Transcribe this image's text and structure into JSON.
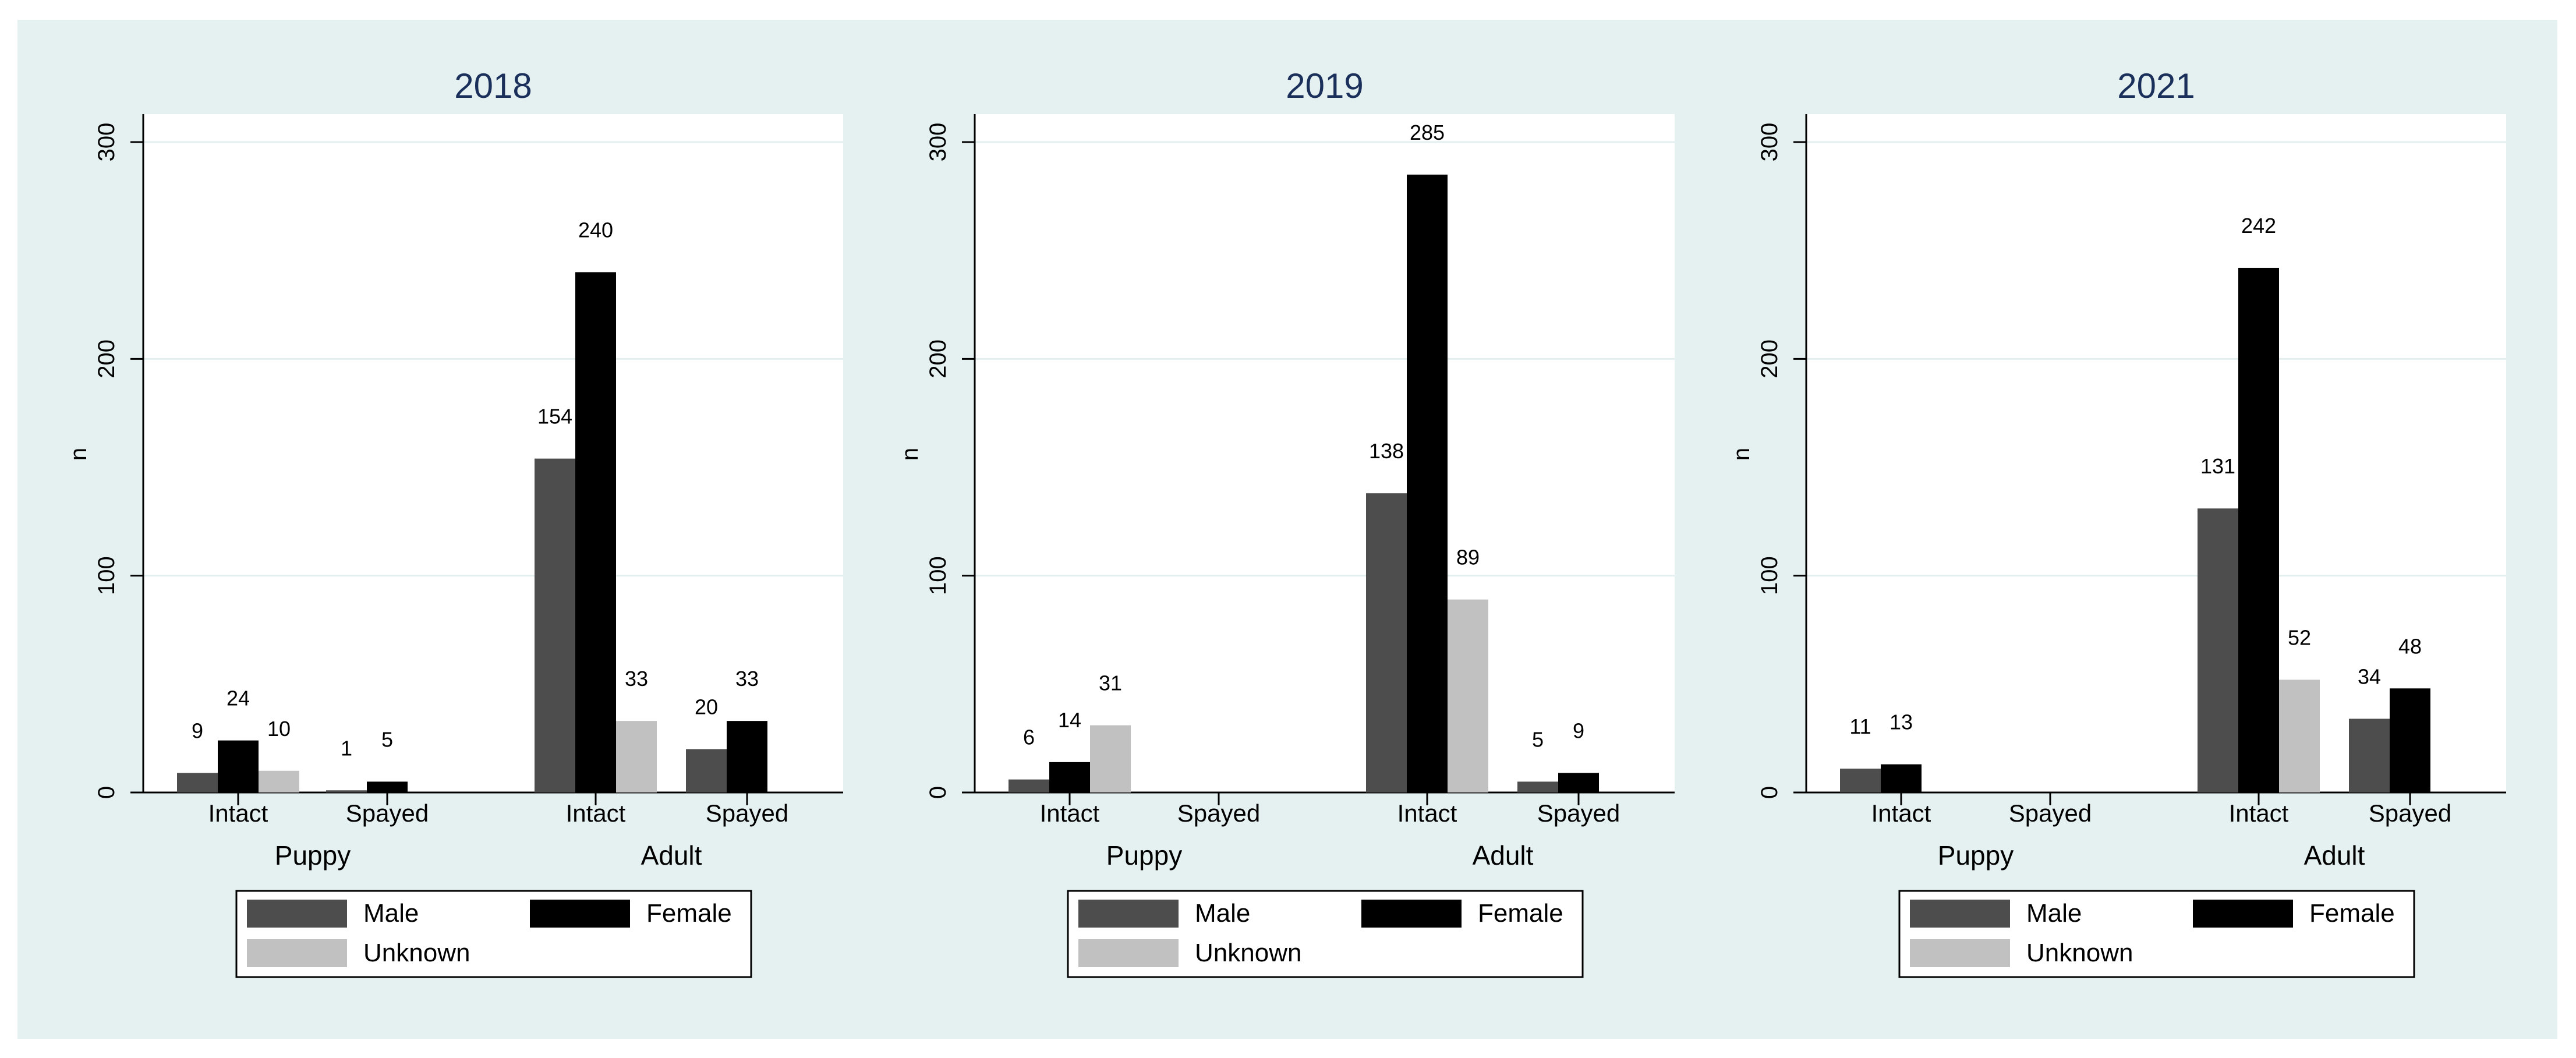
{
  "colors": {
    "background": "#e5f0f1",
    "plot_background": "#ffffff",
    "title": "#1a2f5a",
    "grid": "#e3eeee",
    "male": "#4d4d4d",
    "female": "#000000",
    "unknown": "#c1c1c1"
  },
  "chart_data": [
    {
      "type": "bar",
      "title": "2018",
      "xlabel": "",
      "ylabel": "n",
      "ylim": [
        0,
        300
      ],
      "yticks": [
        "0",
        "100",
        "200",
        "300"
      ],
      "groups": [
        {
          "label": "Puppy",
          "categories": [
            {
              "label": "Intact",
              "values": {
                "Male": 9,
                "Female": 24,
                "Unknown": 10
              }
            },
            {
              "label": "Spayed",
              "values": {
                "Male": 1,
                "Female": 5,
                "Unknown": null
              }
            }
          ]
        },
        {
          "label": "Adult",
          "categories": [
            {
              "label": "Intact",
              "values": {
                "Male": 154,
                "Female": 240,
                "Unknown": 33
              }
            },
            {
              "label": "Spayed",
              "values": {
                "Male": 20,
                "Female": 33,
                "Unknown": null
              }
            }
          ]
        }
      ],
      "legend": [
        "Male",
        "Female",
        "Unknown"
      ]
    },
    {
      "type": "bar",
      "title": "2019",
      "xlabel": "",
      "ylabel": "n",
      "ylim": [
        0,
        300
      ],
      "yticks": [
        "0",
        "100",
        "200",
        "300"
      ],
      "groups": [
        {
          "label": "Puppy",
          "categories": [
            {
              "label": "Intact",
              "values": {
                "Male": 6,
                "Female": 14,
                "Unknown": 31
              }
            },
            {
              "label": "Spayed",
              "values": {
                "Male": null,
                "Female": null,
                "Unknown": null
              }
            }
          ]
        },
        {
          "label": "Adult",
          "categories": [
            {
              "label": "Intact",
              "values": {
                "Male": 138,
                "Female": 285,
                "Unknown": 89
              }
            },
            {
              "label": "Spayed",
              "values": {
                "Male": 5,
                "Female": 9,
                "Unknown": null
              }
            }
          ]
        }
      ],
      "legend": [
        "Male",
        "Female",
        "Unknown"
      ]
    },
    {
      "type": "bar",
      "title": "2021",
      "xlabel": "",
      "ylabel": "n",
      "ylim": [
        0,
        300
      ],
      "yticks": [
        "0",
        "100",
        "200",
        "300"
      ],
      "groups": [
        {
          "label": "Puppy",
          "categories": [
            {
              "label": "Intact",
              "values": {
                "Male": 11,
                "Female": 13,
                "Unknown": null
              }
            },
            {
              "label": "Spayed",
              "values": {
                "Male": null,
                "Female": null,
                "Unknown": null
              }
            }
          ]
        },
        {
          "label": "Adult",
          "categories": [
            {
              "label": "Intact",
              "values": {
                "Male": 131,
                "Female": 242,
                "Unknown": 52
              }
            },
            {
              "label": "Spayed",
              "values": {
                "Male": 34,
                "Female": 48,
                "Unknown": null
              }
            }
          ]
        }
      ],
      "legend": [
        "Male",
        "Female",
        "Unknown"
      ]
    }
  ]
}
